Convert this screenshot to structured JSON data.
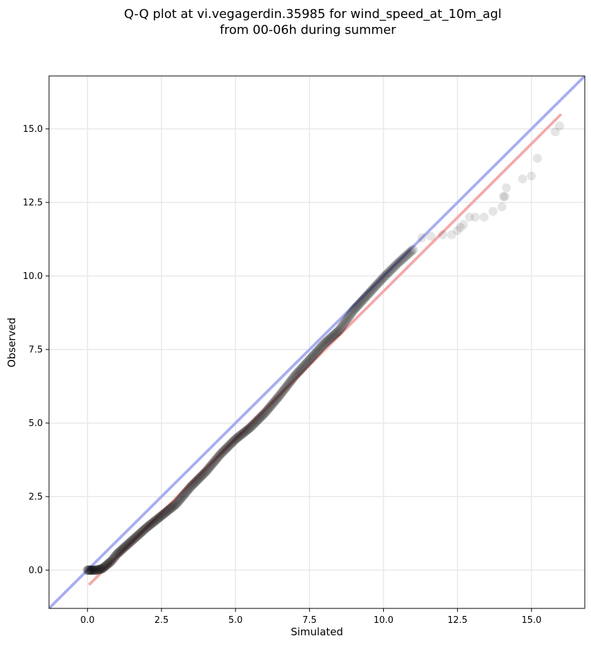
{
  "chart_data": {
    "type": "scatter",
    "title_line1": "Q-Q plot at vi.vegagerdin.35985 for wind_speed_at_10m_agl",
    "title_line2": "from 00-06h during summer",
    "xlabel": "Simulated",
    "ylabel": "Observed",
    "xlim": [
      -1.3,
      16.8
    ],
    "ylim": [
      -1.3,
      16.8
    ],
    "xticks": [
      0.0,
      2.5,
      5.0,
      7.5,
      10.0,
      12.5,
      15.0
    ],
    "xtick_labels": [
      "0.0",
      "2.5",
      "5.0",
      "7.5",
      "10.0",
      "12.5",
      "15.0"
    ],
    "yticks": [
      0.0,
      2.5,
      5.0,
      7.5,
      10.0,
      12.5,
      15.0
    ],
    "ytick_labels": [
      "0.0",
      "2.5",
      "5.0",
      "7.5",
      "10.0",
      "12.5",
      "15.0"
    ],
    "grid": true,
    "reference_line": {
      "name": "1:1 line",
      "color": "#a9aef0",
      "slope": 1,
      "intercept": 0
    },
    "fit_line": {
      "name": "fit",
      "color": "#f4aaaa",
      "x": [
        0.05,
        16.0
      ],
      "y": [
        -0.5,
        15.5
      ]
    },
    "qq_curve": {
      "x": [
        0.0,
        0.3,
        0.5,
        0.8,
        1.0,
        1.5,
        2.0,
        2.5,
        3.0,
        3.5,
        4.0,
        4.5,
        5.0,
        5.5,
        6.0,
        6.5,
        7.0,
        7.5,
        8.0,
        8.5,
        9.0,
        9.5,
        10.0,
        10.5,
        11.0
      ],
      "y": [
        0.0,
        0.0,
        0.05,
        0.3,
        0.55,
        1.0,
        1.45,
        1.85,
        2.25,
        2.85,
        3.35,
        3.95,
        4.45,
        4.85,
        5.35,
        5.95,
        6.6,
        7.15,
        7.7,
        8.15,
        8.85,
        9.4,
        9.95,
        10.45,
        10.9
      ]
    },
    "tail_points": {
      "x": [
        11.3,
        11.6,
        12.0,
        12.3,
        12.5,
        12.6,
        12.7,
        12.9,
        13.1,
        13.4,
        13.7,
        14.0,
        14.05,
        14.1,
        14.15,
        14.7,
        15.0,
        15.2,
        15.8,
        15.95
      ],
      "y": [
        11.3,
        11.35,
        11.4,
        11.4,
        11.55,
        11.65,
        11.75,
        12.0,
        12.0,
        12.0,
        12.2,
        12.35,
        12.7,
        12.7,
        13.0,
        13.3,
        13.4,
        14.0,
        14.9,
        15.1
      ]
    },
    "point_color": "#000000"
  }
}
